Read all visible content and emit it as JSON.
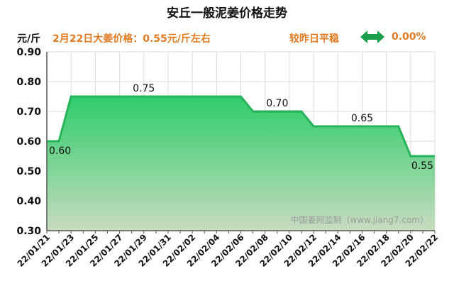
{
  "header": {
    "title": "安丘一般泥姜价格走势",
    "unit": "元/斤",
    "headline": "2月22日大姜价格：0.55元/斤左右",
    "trend": "较昨日平稳",
    "change": "0.00%"
  },
  "watermark": "中国姜网监制（www.jiang7.com）",
  "chart_data": {
    "type": "area",
    "title": "安丘一般泥姜价格走势",
    "ylabel": "元/斤",
    "ylim": [
      0.3,
      0.9
    ],
    "yticks": [
      "0.30",
      "0.40",
      "0.50",
      "0.60",
      "0.70",
      "0.80",
      "0.90"
    ],
    "grid": true,
    "x": [
      "22/01/21",
      "22/01/22",
      "22/01/23",
      "22/01/24",
      "22/01/25",
      "22/01/26",
      "22/01/27",
      "22/01/28",
      "22/01/29",
      "22/01/30",
      "22/01/31",
      "22/02/01",
      "22/02/02",
      "22/02/03",
      "22/02/04",
      "22/02/05",
      "22/02/06",
      "22/02/07",
      "22/02/08",
      "22/02/09",
      "22/02/10",
      "22/02/11",
      "22/02/12",
      "22/02/13",
      "22/02/14",
      "22/02/15",
      "22/02/16",
      "22/02/17",
      "22/02/18",
      "22/02/19",
      "22/02/20",
      "22/02/21",
      "22/02/22"
    ],
    "xtick_labels": [
      "22/01/21",
      "22/01/23",
      "22/01/25",
      "22/01/27",
      "22/01/29",
      "22/01/31",
      "22/02/02",
      "22/02/04",
      "22/02/06",
      "22/02/08",
      "22/02/10",
      "22/02/12",
      "22/02/14",
      "22/02/16",
      "22/02/18",
      "22/02/20",
      "22/02/22"
    ],
    "values": [
      0.6,
      0.6,
      0.75,
      0.75,
      0.75,
      0.75,
      0.75,
      0.75,
      0.75,
      0.75,
      0.75,
      0.75,
      0.75,
      0.75,
      0.75,
      0.75,
      0.75,
      0.7,
      0.7,
      0.7,
      0.7,
      0.7,
      0.65,
      0.65,
      0.65,
      0.65,
      0.65,
      0.65,
      0.65,
      0.65,
      0.55,
      0.55,
      0.55
    ],
    "data_labels": [
      {
        "index": 0,
        "text": "0.60"
      },
      {
        "index": 8,
        "text": "0.75"
      },
      {
        "index": 19,
        "text": "0.70"
      },
      {
        "index": 26,
        "text": "0.65"
      },
      {
        "index": 32,
        "text": "0.55"
      }
    ],
    "colors": {
      "line": "#27b35a",
      "area_top": "#2ecc6a",
      "area_bottom": "#c8dcc0",
      "grid": "#dcdcdc",
      "axis": "#555555",
      "tick_text": "#111111",
      "label_text": "#111111",
      "watermark": "#9a9a9a"
    }
  },
  "icons": {
    "trend_icon": "double-arrow-icon"
  }
}
